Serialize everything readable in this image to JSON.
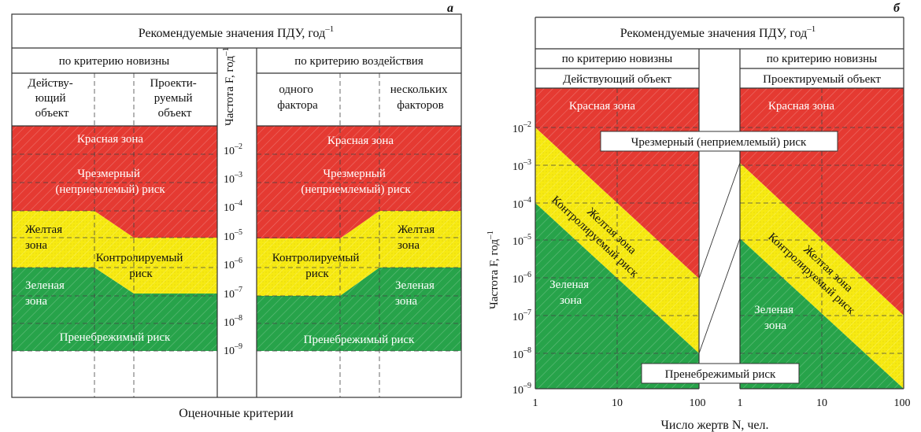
{
  "colors": {
    "red": "#e53a32",
    "yellow": "#f7ea12",
    "green": "#27a34a",
    "frame": "#333333"
  },
  "panel_a": {
    "letter": "а",
    "title": "Рекомендуемые значения ПДУ, год",
    "title_sup": "–1",
    "novelty_header": "по критерию новизны",
    "impact_header": "по критерию воздействия",
    "col_existing": [
      "Действу-",
      "ющий",
      "объект"
    ],
    "col_projected": [
      "Проекти-",
      "руемый",
      "объект"
    ],
    "col_one_factor": [
      "одного",
      "фактора"
    ],
    "col_several_factors": [
      "нескольких",
      "факторов"
    ],
    "freq_axis_label": "Частота F, год",
    "freq_axis_sup": "–1",
    "freq_ticks": [
      "–2",
      "–3",
      "–4",
      "–5",
      "–6",
      "–7",
      "–8",
      "–9"
    ],
    "tick_base": "10",
    "red_zone": "Красная зона",
    "excessive_risk": [
      "Чрезмерный",
      "(неприемлемый) риск"
    ],
    "yellow_zone": [
      "Желтая",
      "зона"
    ],
    "controlled_risk": [
      "Контролируемый",
      "риск"
    ],
    "green_zone": [
      "Зеленая",
      "зона"
    ],
    "negligible_risk": "Пренебрежимый риск",
    "caption": "Оценочные критерии"
  },
  "panel_b": {
    "letter": "б",
    "title": "Рекомендуемые значения ПДУ, год",
    "title_sup": "–1",
    "novelty_left": "по критерию новизны",
    "novelty_right": "по критерию новизны",
    "existing_object": "Действующий объект",
    "projected_object": "Проектируемый объект",
    "red_zone": "Красная зона",
    "excessive_risk": "Чрезмерный (неприемлемый) риск",
    "yellow_zone": "Желтая зона",
    "controlled_risk": "Контролируемый риск",
    "green_zone": [
      "Зеленая",
      "зона"
    ],
    "negligible_risk": "Пренебрежимый риск",
    "y_axis_label": "Частота F, год",
    "y_axis_sup": "–1",
    "y_ticks": [
      "–2",
      "–3",
      "–4",
      "–5",
      "–6",
      "–7",
      "–8",
      "–9"
    ],
    "tick_base": "10",
    "x_ticks_left": [
      "1",
      "10",
      "100"
    ],
    "x_ticks_right": [
      "1",
      "10",
      "100"
    ],
    "x_axis_label": "Число жертв N, чел."
  }
}
